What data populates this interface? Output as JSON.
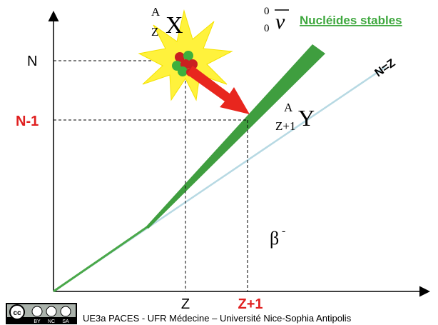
{
  "axes": {
    "y_labels": [
      "N",
      "N-1"
    ],
    "x_labels": [
      "Z",
      "Z+1"
    ]
  },
  "line_label": "N=Z",
  "legend": "Nucléides stables",
  "parent": {
    "mass": "A",
    "charge": "Z",
    "symbol": "X"
  },
  "daughter": {
    "mass": "A",
    "charge": "Z+1",
    "symbol": "Y"
  },
  "antineutrino": {
    "mass": "0",
    "charge": "0",
    "symbol": "ν"
  },
  "decay": {
    "symbol": "β",
    "charge": "-"
  },
  "footer": {
    "license": [
      "BY",
      "NC",
      "SA"
    ],
    "text": "UE3a PACES - UFR Médecine – Université Nice-Sophia Antipolis"
  }
}
